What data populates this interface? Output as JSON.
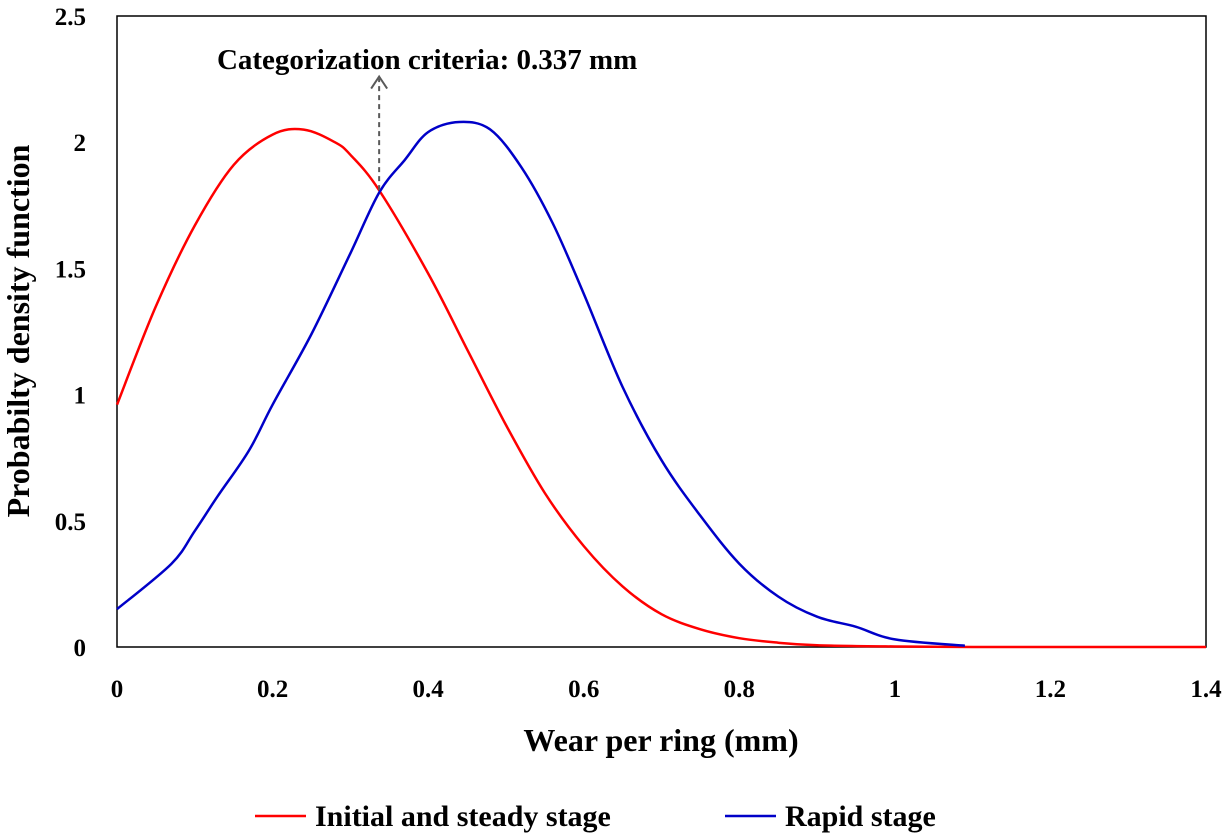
{
  "chart_data": {
    "type": "line",
    "title": "",
    "xlabel": "Wear per ring (mm)",
    "ylabel": "Probabilty density function",
    "xlim": [
      0,
      1.4
    ],
    "ylim": [
      0,
      2.5
    ],
    "x_ticks": [
      "0",
      "0.2",
      "0.4",
      "0.6",
      "0.8",
      "1",
      "1.2",
      "1.4"
    ],
    "y_ticks": [
      "0",
      "0.5",
      "1",
      "1.5",
      "2",
      "2.5"
    ],
    "grid": false,
    "legend_position": "bottom",
    "series": [
      {
        "name": "Initial and steady stage",
        "color": "#ff0000",
        "x": [
          0,
          0.05,
          0.1,
          0.15,
          0.2,
          0.24,
          0.28,
          0.3,
          0.337,
          0.4,
          0.45,
          0.5,
          0.55,
          0.6,
          0.65,
          0.7,
          0.75,
          0.8,
          0.85,
          0.9,
          1.0,
          1.1,
          1.2,
          1.3,
          1.4
        ],
        "y": [
          0.96,
          1.35,
          1.67,
          1.91,
          2.03,
          2.05,
          2.0,
          1.95,
          1.81,
          1.48,
          1.18,
          0.88,
          0.61,
          0.4,
          0.24,
          0.13,
          0.07,
          0.035,
          0.017,
          0.007,
          0.002,
          0.0,
          0.0,
          0.0,
          0.0
        ]
      },
      {
        "name": "Rapid stage",
        "color": "#0000c8",
        "x": [
          0,
          0.07,
          0.1,
          0.13,
          0.17,
          0.2,
          0.25,
          0.3,
          0.337,
          0.37,
          0.4,
          0.44,
          0.48,
          0.52,
          0.56,
          0.6,
          0.65,
          0.7,
          0.75,
          0.8,
          0.85,
          0.9,
          0.95,
          1.0,
          1.09
        ],
        "y": [
          0.15,
          0.33,
          0.46,
          0.6,
          0.78,
          0.96,
          1.24,
          1.56,
          1.8,
          1.93,
          2.04,
          2.08,
          2.05,
          1.9,
          1.68,
          1.4,
          1.03,
          0.74,
          0.52,
          0.33,
          0.2,
          0.12,
          0.08,
          0.03,
          0.005
        ]
      }
    ],
    "annotations": [
      {
        "text": "Categorization criteria: 0.337 mm",
        "x": 0.337,
        "arrow_from_y": 1.81,
        "arrow_to_y": 2.26,
        "style": "dashed-arrow",
        "color": "#595959"
      }
    ]
  }
}
